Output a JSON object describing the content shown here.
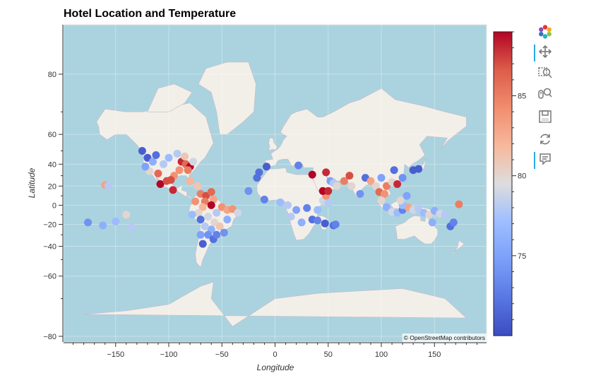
{
  "title": "Hotel Location and Temperature",
  "attribution": "© OpenStreetMap contributors",
  "toolbar": {
    "tools": [
      {
        "name": "bokeh-logo",
        "icon": "bokeh-logo-icon",
        "active": false
      },
      {
        "name": "pan",
        "icon": "pan-icon",
        "active": true
      },
      {
        "name": "box-zoom",
        "icon": "box-zoom-icon",
        "active": false
      },
      {
        "name": "wheel-zoom",
        "icon": "wheel-zoom-icon",
        "active": false
      },
      {
        "name": "save",
        "icon": "save-icon",
        "active": false
      },
      {
        "name": "reset",
        "icon": "reset-icon",
        "active": false
      },
      {
        "name": "hover",
        "icon": "hover-icon",
        "active": true
      }
    ]
  },
  "colors": {
    "ocean": "#aad3df",
    "land": "#f2efe9",
    "border": "#c9b8c8",
    "accent": "#26aae1"
  },
  "chart_data": {
    "type": "scatter",
    "xlabel": "Longitude",
    "ylabel": "Latitude",
    "xlim": [
      -199,
      199
    ],
    "ylim": [
      -81,
      86
    ],
    "y_scale": "web-mercator",
    "x_ticks": [
      -150,
      -100,
      -50,
      0,
      50,
      100,
      150
    ],
    "y_ticks": [
      80,
      60,
      40,
      20,
      0,
      -20,
      -40,
      -60,
      -80
    ],
    "colorbar": {
      "colormap": "coolwarm",
      "range": [
        70,
        89
      ],
      "ticks": [
        75,
        80,
        85
      ]
    },
    "grid": true,
    "series": [
      {
        "points": [
          {
            "x": -120,
            "y": 45,
            "t": 71
          },
          {
            "x": -118,
            "y": 34,
            "t": 80
          },
          {
            "x": -115,
            "y": 42,
            "t": 76
          },
          {
            "x": -122,
            "y": 38,
            "t": 75
          },
          {
            "x": -110,
            "y": 32,
            "t": 86
          },
          {
            "x": -105,
            "y": 40,
            "t": 78
          },
          {
            "x": -100,
            "y": 45,
            "t": 77
          },
          {
            "x": -95,
            "y": 30,
            "t": 84
          },
          {
            "x": -90,
            "y": 35,
            "t": 84
          },
          {
            "x": -88,
            "y": 42,
            "t": 88
          },
          {
            "x": -84,
            "y": 40,
            "t": 86
          },
          {
            "x": -80,
            "y": 38,
            "t": 89
          },
          {
            "x": -82,
            "y": 35,
            "t": 85
          },
          {
            "x": -85,
            "y": 46,
            "t": 81
          },
          {
            "x": -77,
            "y": 42,
            "t": 79
          },
          {
            "x": -92,
            "y": 48,
            "t": 78
          },
          {
            "x": -112,
            "y": 47,
            "t": 72
          },
          {
            "x": -125,
            "y": 50,
            "t": 71
          },
          {
            "x": -108,
            "y": 22,
            "t": 89
          },
          {
            "x": -102,
            "y": 25,
            "t": 87
          },
          {
            "x": -98,
            "y": 26,
            "t": 87
          },
          {
            "x": -96,
            "y": 16,
            "t": 88
          },
          {
            "x": -80,
            "y": 25,
            "t": 82
          },
          {
            "x": -73,
            "y": 20,
            "t": 81
          },
          {
            "x": -70,
            "y": 12,
            "t": 85
          },
          {
            "x": -65,
            "y": 10,
            "t": 87
          },
          {
            "x": -60,
            "y": 14,
            "t": 86
          },
          {
            "x": -66,
            "y": 4,
            "t": 85
          },
          {
            "x": -58,
            "y": 6,
            "t": 83
          },
          {
            "x": -75,
            "y": 4,
            "t": 84
          },
          {
            "x": -60,
            "y": 0,
            "t": 89
          },
          {
            "x": -50,
            "y": -2,
            "t": 84
          },
          {
            "x": -45,
            "y": -5,
            "t": 83
          },
          {
            "x": -40,
            "y": -4,
            "t": 84
          },
          {
            "x": -35,
            "y": -8,
            "t": 79
          },
          {
            "x": -45,
            "y": -15,
            "t": 76
          },
          {
            "x": -55,
            "y": -8,
            "t": 78
          },
          {
            "x": -68,
            "y": -2,
            "t": 82
          },
          {
            "x": -72,
            "y": -8,
            "t": 80
          },
          {
            "x": -78,
            "y": -10,
            "t": 77
          },
          {
            "x": -70,
            "y": -15,
            "t": 72
          },
          {
            "x": -63,
            "y": -12,
            "t": 79
          },
          {
            "x": -57,
            "y": -18,
            "t": 80
          },
          {
            "x": -52,
            "y": -22,
            "t": 81
          },
          {
            "x": -60,
            "y": -25,
            "t": 76
          },
          {
            "x": -66,
            "y": -22,
            "t": 78
          },
          {
            "x": -70,
            "y": -30,
            "t": 75
          },
          {
            "x": -63,
            "y": -30,
            "t": 74
          },
          {
            "x": -58,
            "y": -34,
            "t": 72
          },
          {
            "x": -55,
            "y": -30,
            "t": 73
          },
          {
            "x": -48,
            "y": -28,
            "t": 74
          },
          {
            "x": -68,
            "y": -38,
            "t": 71
          },
          {
            "x": -160,
            "y": 21,
            "t": 83
          },
          {
            "x": -157,
            "y": 20,
            "t": 78
          },
          {
            "x": -176,
            "y": -18,
            "t": 74
          },
          {
            "x": -150,
            "y": -17,
            "t": 77
          },
          {
            "x": -140,
            "y": -10,
            "t": 80
          },
          {
            "x": -135,
            "y": -23,
            "t": 78
          },
          {
            "x": -162,
            "y": -21,
            "t": 76
          },
          {
            "x": -25,
            "y": 15,
            "t": 74
          },
          {
            "x": -17,
            "y": 28,
            "t": 72
          },
          {
            "x": -15,
            "y": 33,
            "t": 72
          },
          {
            "x": -8,
            "y": 38,
            "t": 71
          },
          {
            "x": -10,
            "y": 6,
            "t": 73
          },
          {
            "x": 5,
            "y": 3,
            "t": 77
          },
          {
            "x": 12,
            "y": 0,
            "t": 78
          },
          {
            "x": 20,
            "y": -5,
            "t": 75
          },
          {
            "x": 30,
            "y": -3,
            "t": 73
          },
          {
            "x": 40,
            "y": -5,
            "t": 77
          },
          {
            "x": 35,
            "y": -15,
            "t": 72
          },
          {
            "x": 40,
            "y": -16,
            "t": 73
          },
          {
            "x": 47,
            "y": -19,
            "t": 71
          },
          {
            "x": 55,
            "y": -21,
            "t": 72
          },
          {
            "x": 57,
            "y": -20,
            "t": 73
          },
          {
            "x": 15,
            "y": -12,
            "t": 78
          },
          {
            "x": 25,
            "y": -18,
            "t": 76
          },
          {
            "x": 45,
            "y": 5,
            "t": 79
          },
          {
            "x": 48,
            "y": 10,
            "t": 84
          },
          {
            "x": 50,
            "y": 2,
            "t": 78
          },
          {
            "x": 22,
            "y": 39,
            "t": 73
          },
          {
            "x": 35,
            "y": 31,
            "t": 89
          },
          {
            "x": 48,
            "y": 33,
            "t": 88
          },
          {
            "x": 45,
            "y": 15,
            "t": 89
          },
          {
            "x": 50,
            "y": 15,
            "t": 88
          },
          {
            "x": 52,
            "y": 25,
            "t": 75
          },
          {
            "x": 55,
            "y": 23,
            "t": 78
          },
          {
            "x": 58,
            "y": 20,
            "t": 80
          },
          {
            "x": 65,
            "y": 25,
            "t": 85
          },
          {
            "x": 70,
            "y": 30,
            "t": 87
          },
          {
            "x": 72,
            "y": 20,
            "t": 80
          },
          {
            "x": 80,
            "y": 12,
            "t": 74
          },
          {
            "x": 85,
            "y": 28,
            "t": 72
          },
          {
            "x": 90,
            "y": 25,
            "t": 83
          },
          {
            "x": 95,
            "y": 20,
            "t": 80
          },
          {
            "x": 100,
            "y": 28,
            "t": 75
          },
          {
            "x": 105,
            "y": 20,
            "t": 85
          },
          {
            "x": 110,
            "y": 24,
            "t": 80
          },
          {
            "x": 115,
            "y": 22,
            "t": 88
          },
          {
            "x": 120,
            "y": 28,
            "t": 74
          },
          {
            "x": 112,
            "y": 35,
            "t": 72
          },
          {
            "x": 130,
            "y": 35,
            "t": 71
          },
          {
            "x": 135,
            "y": 36,
            "t": 71
          },
          {
            "x": 98,
            "y": 14,
            "t": 86
          },
          {
            "x": 103,
            "y": 12,
            "t": 84
          },
          {
            "x": 100,
            "y": 5,
            "t": 80
          },
          {
            "x": 105,
            "y": -2,
            "t": 76
          },
          {
            "x": 110,
            "y": -7,
            "t": 79
          },
          {
            "x": 115,
            "y": -8,
            "t": 77
          },
          {
            "x": 120,
            "y": -5,
            "t": 73
          },
          {
            "x": 125,
            "y": -2,
            "t": 83
          },
          {
            "x": 130,
            "y": -5,
            "t": 79
          },
          {
            "x": 135,
            "y": -4,
            "t": 78
          },
          {
            "x": 140,
            "y": -8,
            "t": 77
          },
          {
            "x": 145,
            "y": -10,
            "t": 80
          },
          {
            "x": 150,
            "y": -6,
            "t": 76
          },
          {
            "x": 155,
            "y": -9,
            "t": 79
          },
          {
            "x": 160,
            "y": -10,
            "t": 78
          },
          {
            "x": 148,
            "y": -18,
            "t": 76
          },
          {
            "x": 120,
            "y": 0,
            "t": 77
          },
          {
            "x": 118,
            "y": 5,
            "t": 80
          },
          {
            "x": 124,
            "y": 10,
            "t": 75
          },
          {
            "x": 165,
            "y": -22,
            "t": 72
          },
          {
            "x": 168,
            "y": -18,
            "t": 73
          },
          {
            "x": 173,
            "y": 1,
            "t": 85
          }
        ]
      }
    ]
  }
}
